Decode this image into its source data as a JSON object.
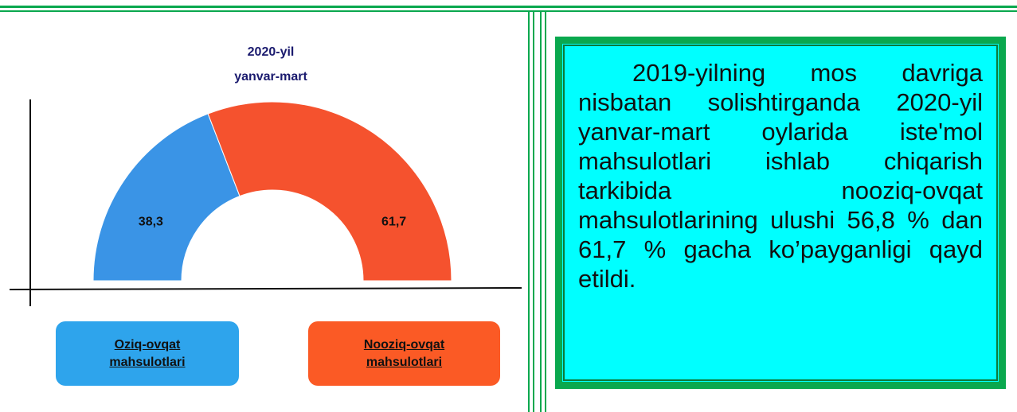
{
  "chart_data": {
    "type": "pie",
    "title": [
      "2020-yil",
      "yanvar-mart"
    ],
    "categories": [
      "Oziq-ovqat mahsulotlari",
      "Nooziq-ovqat mahsulotlari"
    ],
    "values": [
      38.3,
      61.7
    ],
    "value_labels": [
      "38,3",
      "61,7"
    ],
    "colors": [
      "#3a94e6",
      "#f5522e"
    ],
    "legend_colors": [
      "#2ea4ec",
      "#fb5a25"
    ]
  },
  "text_box": {
    "text": "2019-yilning mos davriga nisbatan solishtirganda 2020-yil yanvar-mart oylarida iste'mol mahsulotlari ishlab chiqarish tarkibida nooziq-ovqat mahsulotlarining ulushi 56,8 % dan 61,7 % gacha ko’payganligi qayd etildi."
  }
}
